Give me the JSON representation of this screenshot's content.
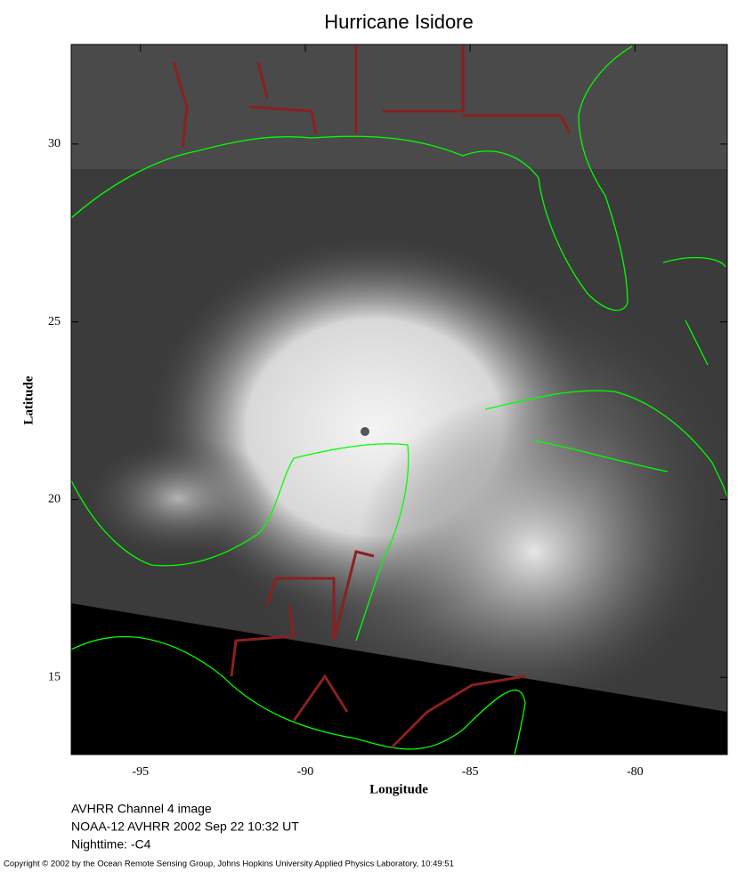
{
  "map": {
    "title": "Hurricane Isidore",
    "xlabel": "Longitude",
    "ylabel": "Latitude",
    "xlim": [
      -97.1,
      -77.2
    ],
    "ylim": [
      12.83,
      32.8
    ],
    "xticks": [
      -95,
      -90,
      -85,
      -80
    ],
    "yticks": [
      15,
      20,
      25,
      30
    ],
    "captions": [
      "AVHRR Channel 4 image",
      "NOAA-12 AVHRR 2002 Sep 22 10:32 UT",
      "Nighttime: -C4"
    ],
    "copyright": "Copyright © 2002 by the Ocean Remote Sensing Group, Johns Hopkins University Applied Physics Laboratory, 10:49:51"
  }
}
